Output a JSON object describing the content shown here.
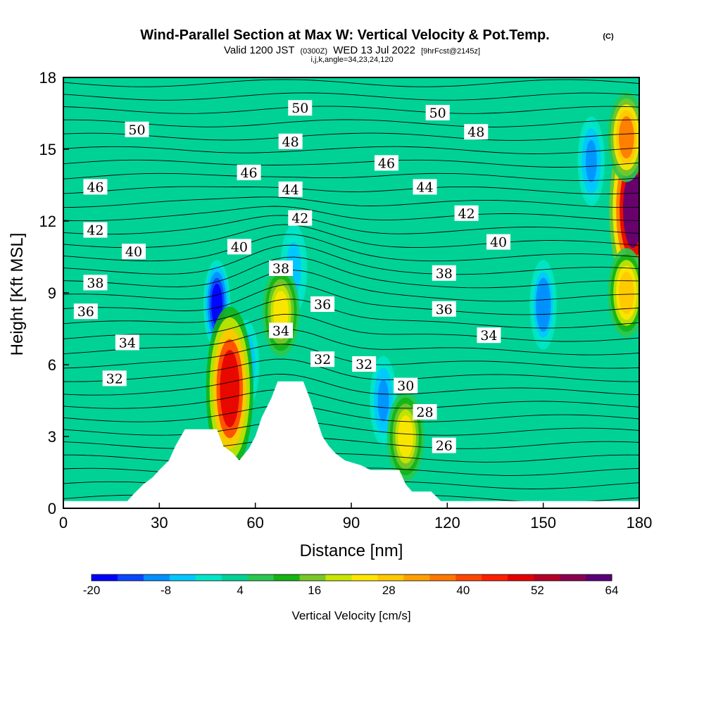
{
  "chart_data": {
    "type": "heatmap",
    "title": "Wind-Parallel Section at Max W: Vertical Velocity & Pot.Temp.",
    "title_mark": "(C)",
    "subtitle_main": "Valid 1200 JST",
    "subtitle_utc": "(0300Z)",
    "subtitle_date": "WED 13 Jul 2022",
    "subtitle_fcst": "[9hrFcst@2145z]",
    "subtitle_indices": "i,j,k,angle=34,23,24,120",
    "xlabel": "Distance [nm]",
    "ylabel": "Height [Kft MSL]",
    "xlim": [
      0,
      180
    ],
    "ylim": [
      0,
      18
    ],
    "x_ticks": [
      "0",
      "30",
      "60",
      "90",
      "120",
      "150",
      "180"
    ],
    "y_ticks": [
      "0",
      "3",
      "6",
      "9",
      "12",
      "15",
      "18"
    ],
    "colorbar": {
      "label": "Vertical Velocity [cm/s]",
      "ticks": [
        "-20",
        "-8",
        "4",
        "16",
        "28",
        "40",
        "52",
        "64"
      ],
      "min": -20,
      "max": 64,
      "colors": [
        "#0000ff",
        "#0a46ff",
        "#0090ff",
        "#00c8ff",
        "#00e6c8",
        "#00d296",
        "#28c850",
        "#14b414",
        "#78c828",
        "#c8e600",
        "#ffe600",
        "#ffc800",
        "#ffa000",
        "#ff7800",
        "#ff4600",
        "#ff1e00",
        "#e60000",
        "#b40028",
        "#8c0050",
        "#5a0078"
      ]
    },
    "background_w": 2,
    "updrafts": [
      {
        "x": 52,
        "y": 5.0,
        "w": 48
      },
      {
        "x": 68,
        "y": 8.2,
        "w": 26
      },
      {
        "x": 107,
        "y": 3.0,
        "w": 24
      },
      {
        "x": 178,
        "y": 12.5,
        "w": 60
      },
      {
        "x": 176,
        "y": 15.5,
        "w": 36
      },
      {
        "x": 176,
        "y": 9.0,
        "w": 30
      }
    ],
    "downdrafts": [
      {
        "x": 48,
        "y": 8.5,
        "w": -16
      },
      {
        "x": 57,
        "y": 6.0,
        "w": -8
      },
      {
        "x": 72,
        "y": 10.0,
        "w": -6
      },
      {
        "x": 100,
        "y": 4.5,
        "w": -8
      },
      {
        "x": 150,
        "y": 8.5,
        "w": -10
      },
      {
        "x": 165,
        "y": 14.5,
        "w": -8
      }
    ],
    "theta_labels": [
      {
        "text": "50",
        "x": 23,
        "y": 15.8
      },
      {
        "text": "50",
        "x": 74,
        "y": 16.7
      },
      {
        "text": "50",
        "x": 117,
        "y": 16.5
      },
      {
        "text": "48",
        "x": 71,
        "y": 15.3
      },
      {
        "text": "48",
        "x": 129,
        "y": 15.7
      },
      {
        "text": "46",
        "x": 10,
        "y": 13.4
      },
      {
        "text": "46",
        "x": 58,
        "y": 14.0
      },
      {
        "text": "46",
        "x": 101,
        "y": 14.4
      },
      {
        "text": "44",
        "x": 71,
        "y": 13.3
      },
      {
        "text": "44",
        "x": 113,
        "y": 13.4
      },
      {
        "text": "42",
        "x": 10,
        "y": 11.6
      },
      {
        "text": "42",
        "x": 74,
        "y": 12.1
      },
      {
        "text": "42",
        "x": 126,
        "y": 12.3
      },
      {
        "text": "40",
        "x": 22,
        "y": 10.7
      },
      {
        "text": "40",
        "x": 55,
        "y": 10.9
      },
      {
        "text": "40",
        "x": 136,
        "y": 11.1
      },
      {
        "text": "38",
        "x": 10,
        "y": 9.4
      },
      {
        "text": "38",
        "x": 68,
        "y": 10.0
      },
      {
        "text": "38",
        "x": 119,
        "y": 9.8
      },
      {
        "text": "36",
        "x": 7,
        "y": 8.2
      },
      {
        "text": "36",
        "x": 81,
        "y": 8.5
      },
      {
        "text": "36",
        "x": 119,
        "y": 8.3
      },
      {
        "text": "34",
        "x": 20,
        "y": 6.9
      },
      {
        "text": "34",
        "x": 68,
        "y": 7.4
      },
      {
        "text": "34",
        "x": 133,
        "y": 7.2
      },
      {
        "text": "32",
        "x": 16,
        "y": 5.4
      },
      {
        "text": "32",
        "x": 81,
        "y": 6.2
      },
      {
        "text": "32",
        "x": 94,
        "y": 6.0
      },
      {
        "text": "30",
        "x": 107,
        "y": 5.1
      },
      {
        "text": "28",
        "x": 113,
        "y": 4.0
      },
      {
        "text": "26",
        "x": 119,
        "y": 2.6
      }
    ],
    "terrain": [
      [
        0,
        0.3
      ],
      [
        20,
        0.3
      ],
      [
        22,
        0.6
      ],
      [
        25,
        1.0
      ],
      [
        28,
        1.3
      ],
      [
        30,
        1.6
      ],
      [
        33,
        2.0
      ],
      [
        35,
        2.6
      ],
      [
        38,
        3.3
      ],
      [
        48,
        3.3
      ],
      [
        50,
        2.6
      ],
      [
        53,
        2.3
      ],
      [
        55,
        2.0
      ],
      [
        58,
        2.5
      ],
      [
        60,
        3.0
      ],
      [
        62,
        3.8
      ],
      [
        65,
        4.6
      ],
      [
        67,
        5.3
      ],
      [
        75,
        5.3
      ],
      [
        77,
        4.6
      ],
      [
        79,
        3.8
      ],
      [
        81,
        3.0
      ],
      [
        83,
        2.6
      ],
      [
        85,
        2.3
      ],
      [
        88,
        2.0
      ],
      [
        93,
        1.8
      ],
      [
        96,
        1.6
      ],
      [
        105,
        1.6
      ],
      [
        107,
        1.0
      ],
      [
        109,
        0.7
      ],
      [
        115,
        0.7
      ],
      [
        118,
        0.3
      ],
      [
        180,
        0.3
      ]
    ]
  }
}
